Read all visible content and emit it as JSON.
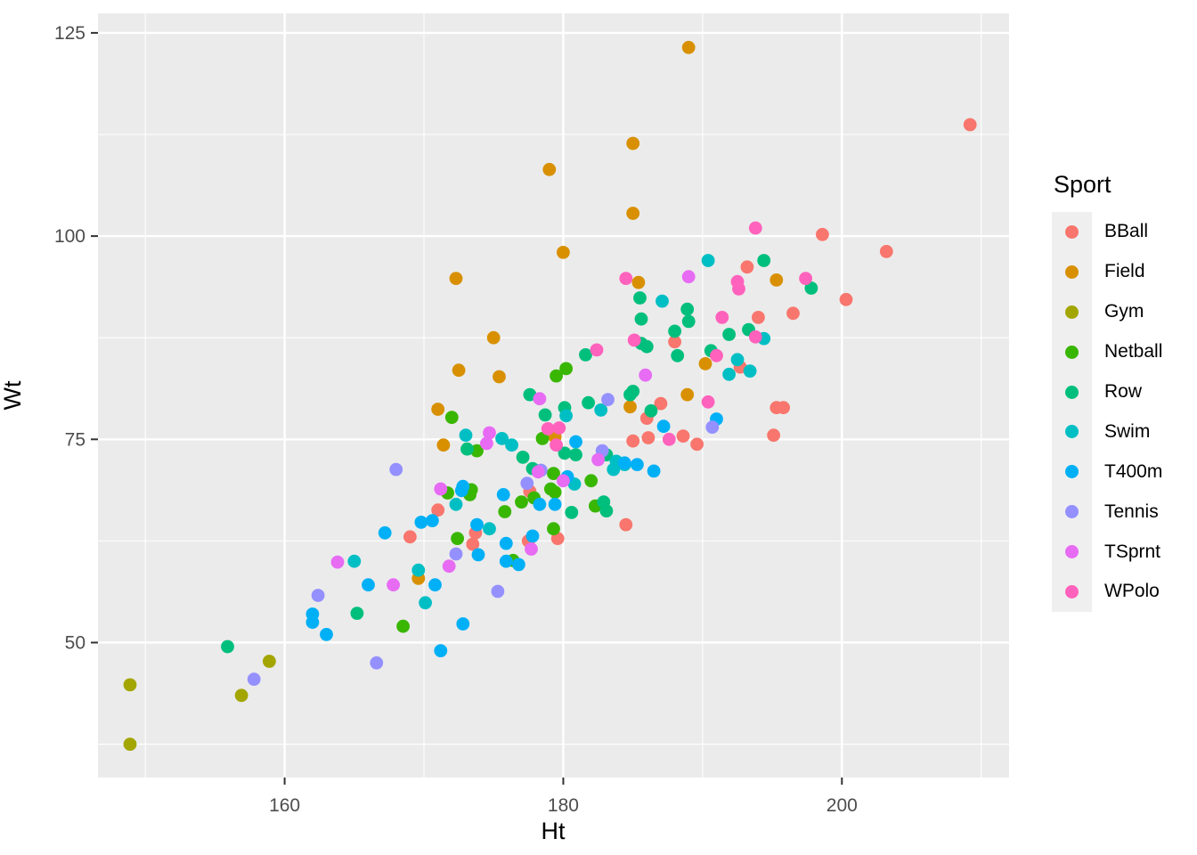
{
  "chart_data": {
    "type": "scatter",
    "title": "",
    "xlabel": "Ht",
    "ylabel": "Wt",
    "legend_title": "Sport",
    "legend_position": "right",
    "xlim": [
      146.6,
      212.0
    ],
    "ylim": [
      33.4,
      127.4
    ],
    "x_major_ticks": [
      160,
      180,
      200
    ],
    "x_minor_ticks": [
      150,
      170,
      190,
      210
    ],
    "y_major_ticks": [
      50,
      75,
      100,
      125
    ],
    "y_minor_ticks": [
      37.5,
      62.5,
      87.5,
      112.5
    ],
    "grid": true,
    "panel_bg": "#EBEBEB",
    "grid_color": "#FFFFFF",
    "tick_label_color": "#4D4D4D",
    "tick_mark_color": "#333333",
    "point_radius": 7.4,
    "series": [
      {
        "name": "BBall",
        "color": "#F8766D",
        "points": [
          [
            169,
            63
          ],
          [
            171,
            66.3
          ],
          [
            173.7,
            63.5
          ],
          [
            173.5,
            62.1
          ],
          [
            177.5,
            62.5
          ],
          [
            179.6,
            62.8
          ],
          [
            184.5,
            64.5
          ],
          [
            177.6,
            68.6
          ],
          [
            186,
            77.6
          ],
          [
            187,
            79.4
          ],
          [
            188,
            87
          ],
          [
            185,
            74.8
          ],
          [
            186.1,
            75.2
          ],
          [
            188.6,
            75.4
          ],
          [
            189.6,
            74.4
          ],
          [
            194,
            90
          ],
          [
            196.5,
            90.5
          ],
          [
            195.3,
            78.9
          ],
          [
            195.8,
            78.9
          ],
          [
            195.1,
            75.5
          ],
          [
            192.7,
            83.9
          ],
          [
            193.2,
            96.2
          ],
          [
            198.6,
            100.2
          ],
          [
            200.3,
            92.2
          ],
          [
            203.2,
            98.1
          ],
          [
            209.2,
            113.7
          ]
        ]
      },
      {
        "name": "Field",
        "color": "#D89000",
        "points": [
          [
            169.6,
            57.9
          ],
          [
            171.4,
            74.3
          ],
          [
            171,
            78.7
          ],
          [
            172.5,
            83.5
          ],
          [
            175.4,
            82.7
          ],
          [
            175,
            87.5
          ],
          [
            172.3,
            94.8
          ],
          [
            180,
            98
          ],
          [
            179,
            108.2
          ],
          [
            185,
            111.4
          ],
          [
            189,
            123.2
          ],
          [
            185,
            102.8
          ],
          [
            184.8,
            79
          ],
          [
            188.9,
            80.5
          ],
          [
            190.2,
            84.3
          ],
          [
            185.4,
            94.3
          ],
          [
            195.3,
            94.6
          ],
          [
            179.4,
            75.3
          ]
        ]
      },
      {
        "name": "Gym",
        "color": "#A3A500",
        "points": [
          [
            148.9,
            44.8
          ],
          [
            148.9,
            37.5
          ],
          [
            156.9,
            43.5
          ],
          [
            158.9,
            47.7
          ]
        ]
      },
      {
        "name": "Netball",
        "color": "#39B600",
        "points": [
          [
            168.5,
            52
          ],
          [
            171.7,
            68.4
          ],
          [
            172.4,
            62.8
          ],
          [
            173.3,
            68.2
          ],
          [
            173.4,
            68.8
          ],
          [
            173.8,
            73.6
          ],
          [
            172,
            77.7
          ],
          [
            175.8,
            66.1
          ],
          [
            176.4,
            60.1
          ],
          [
            177,
            67.3
          ],
          [
            177.9,
            67.8
          ],
          [
            179.4,
            68.5
          ],
          [
            179.3,
            64
          ],
          [
            178.5,
            75.1
          ],
          [
            179.3,
            70.8
          ],
          [
            179.5,
            82.8
          ],
          [
            180.2,
            83.7
          ],
          [
            182.3,
            66.8
          ],
          [
            182,
            69.9
          ],
          [
            179.1,
            68.9
          ]
        ]
      },
      {
        "name": "Row",
        "color": "#00BF7D",
        "points": [
          [
            155.9,
            49.5
          ],
          [
            165.2,
            53.6
          ],
          [
            173.1,
            73.8
          ],
          [
            177.1,
            72.8
          ],
          [
            177.8,
            71.4
          ],
          [
            177.6,
            80.5
          ],
          [
            178.7,
            78
          ],
          [
            180.6,
            66
          ],
          [
            180.9,
            73.1
          ],
          [
            181.6,
            85.4
          ],
          [
            180.1,
            78.9
          ],
          [
            181.8,
            79.5
          ],
          [
            182.9,
            67.3
          ],
          [
            183.1,
            66.2
          ],
          [
            183.1,
            73.1
          ],
          [
            184.8,
            80.5
          ],
          [
            185,
            80.9
          ],
          [
            185.5,
            92.4
          ],
          [
            185.6,
            89.8
          ],
          [
            185.6,
            86.8
          ],
          [
            186,
            86.4
          ],
          [
            186.3,
            78.5
          ],
          [
            188.9,
            91
          ],
          [
            189,
            89.5
          ],
          [
            188,
            88.3
          ],
          [
            188.2,
            85.3
          ],
          [
            190.6,
            85.9
          ],
          [
            191.9,
            87.9
          ],
          [
            193.3,
            88.5
          ],
          [
            194.4,
            97
          ],
          [
            197.8,
            93.6
          ],
          [
            180.1,
            73.3
          ]
        ]
      },
      {
        "name": "Swim",
        "color": "#00BFC4",
        "points": [
          [
            165,
            60
          ],
          [
            169.6,
            58.9
          ],
          [
            170.1,
            54.9
          ],
          [
            172.3,
            67
          ],
          [
            174.7,
            64
          ],
          [
            173,
            75.5
          ],
          [
            175.6,
            75.1
          ],
          [
            176.3,
            74.3
          ],
          [
            180.2,
            77.9
          ],
          [
            180.8,
            69.5
          ],
          [
            183.8,
            72.3
          ],
          [
            184.4,
            71.9
          ],
          [
            183.6,
            71.3
          ],
          [
            182.7,
            78.6
          ],
          [
            192.5,
            84.8
          ],
          [
            193.4,
            83.4
          ],
          [
            191.9,
            83
          ],
          [
            187.1,
            92
          ],
          [
            190.4,
            97
          ],
          [
            194.4,
            87.4
          ]
        ]
      },
      {
        "name": "T400m",
        "color": "#00B0F6",
        "points": [
          [
            162,
            53.5
          ],
          [
            162,
            52.5
          ],
          [
            163,
            51
          ],
          [
            166,
            57.1
          ],
          [
            167.2,
            63.5
          ],
          [
            169.8,
            64.8
          ],
          [
            170.6,
            65
          ],
          [
            170.8,
            57.1
          ],
          [
            171.2,
            49
          ],
          [
            172.8,
            52.3
          ],
          [
            172.7,
            68.7
          ],
          [
            172.8,
            69.2
          ],
          [
            173.8,
            64.5
          ],
          [
            173.9,
            60.8
          ],
          [
            175.7,
            68.2
          ],
          [
            175.9,
            62.2
          ],
          [
            175.9,
            60
          ],
          [
            176.8,
            59.6
          ],
          [
            177.8,
            63.1
          ],
          [
            178.3,
            67
          ],
          [
            179.4,
            67
          ],
          [
            180.3,
            70.4
          ],
          [
            180.9,
            74.7
          ],
          [
            184.4,
            72.1
          ],
          [
            185.3,
            71.9
          ],
          [
            186.5,
            71.1
          ],
          [
            187.2,
            76.6
          ],
          [
            191,
            77.5
          ]
        ]
      },
      {
        "name": "Tennis",
        "color": "#9590FF",
        "points": [
          [
            157.8,
            45.5
          ],
          [
            162.4,
            55.8
          ],
          [
            166.6,
            47.5
          ],
          [
            168,
            71.3
          ],
          [
            172.3,
            60.9
          ],
          [
            175.3,
            56.3
          ],
          [
            177.4,
            69.6
          ],
          [
            178.4,
            71.2
          ],
          [
            182.8,
            73.6
          ],
          [
            183.2,
            79.9
          ],
          [
            190.7,
            76.5
          ]
        ]
      },
      {
        "name": "TSprnt",
        "color": "#E76BF3",
        "points": [
          [
            163.8,
            59.9
          ],
          [
            167.8,
            57.1
          ],
          [
            171.2,
            68.9
          ],
          [
            171.8,
            59.4
          ],
          [
            174.7,
            75.8
          ],
          [
            174.5,
            74.5
          ],
          [
            177.7,
            61.5
          ],
          [
            178.2,
            71
          ],
          [
            178.3,
            80
          ],
          [
            180,
            69.9
          ],
          [
            182.5,
            72.5
          ],
          [
            185.9,
            82.9
          ],
          [
            189,
            95
          ]
        ]
      },
      {
        "name": "WPolo",
        "color": "#FF62BC",
        "points": [
          [
            178.9,
            76.3
          ],
          [
            179.7,
            76.4
          ],
          [
            179.5,
            74.3
          ],
          [
            182.4,
            86
          ],
          [
            184.5,
            94.8
          ],
          [
            185.1,
            87.2
          ],
          [
            187.6,
            75
          ],
          [
            190.4,
            79.6
          ],
          [
            191,
            85.3
          ],
          [
            191.4,
            90
          ],
          [
            192.5,
            94.4
          ],
          [
            192.6,
            93.5
          ],
          [
            193.8,
            87.6
          ],
          [
            193.8,
            101
          ],
          [
            197.4,
            94.8
          ]
        ]
      }
    ]
  }
}
